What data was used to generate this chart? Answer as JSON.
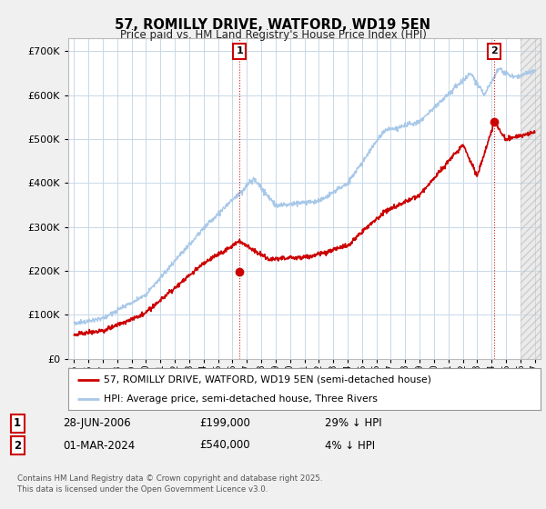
{
  "title": "57, ROMILLY DRIVE, WATFORD, WD19 5EN",
  "subtitle": "Price paid vs. HM Land Registry's House Price Index (HPI)",
  "hpi_color": "#a8c8e8",
  "price_color": "#cc0000",
  "background_color": "#f0f0f0",
  "plot_bg_color": "#ffffff",
  "grid_color": "#c8d8e8",
  "ylim": [
    0,
    730000
  ],
  "yticks": [
    0,
    100000,
    200000,
    300000,
    400000,
    500000,
    600000,
    700000
  ],
  "legend_label_price": "57, ROMILLY DRIVE, WATFORD, WD19 5EN (semi-detached house)",
  "legend_label_hpi": "HPI: Average price, semi-detached house, Three Rivers",
  "annotation1_date": "28-JUN-2006",
  "annotation1_price": "£199,000",
  "annotation1_hpi": "29% ↓ HPI",
  "annotation2_date": "01-MAR-2024",
  "annotation2_price": "£540,000",
  "annotation2_hpi": "4% ↓ HPI",
  "footer": "Contains HM Land Registry data © Crown copyright and database right 2025.\nThis data is licensed under the Open Government Licence v3.0.",
  "vline1_x": 2006.49,
  "vline2_x": 2024.17,
  "marker1_y": 199000,
  "marker2_y": 540000,
  "hatch_start": 2026.0,
  "xlim_left": 1994.6,
  "xlim_right": 2027.4
}
